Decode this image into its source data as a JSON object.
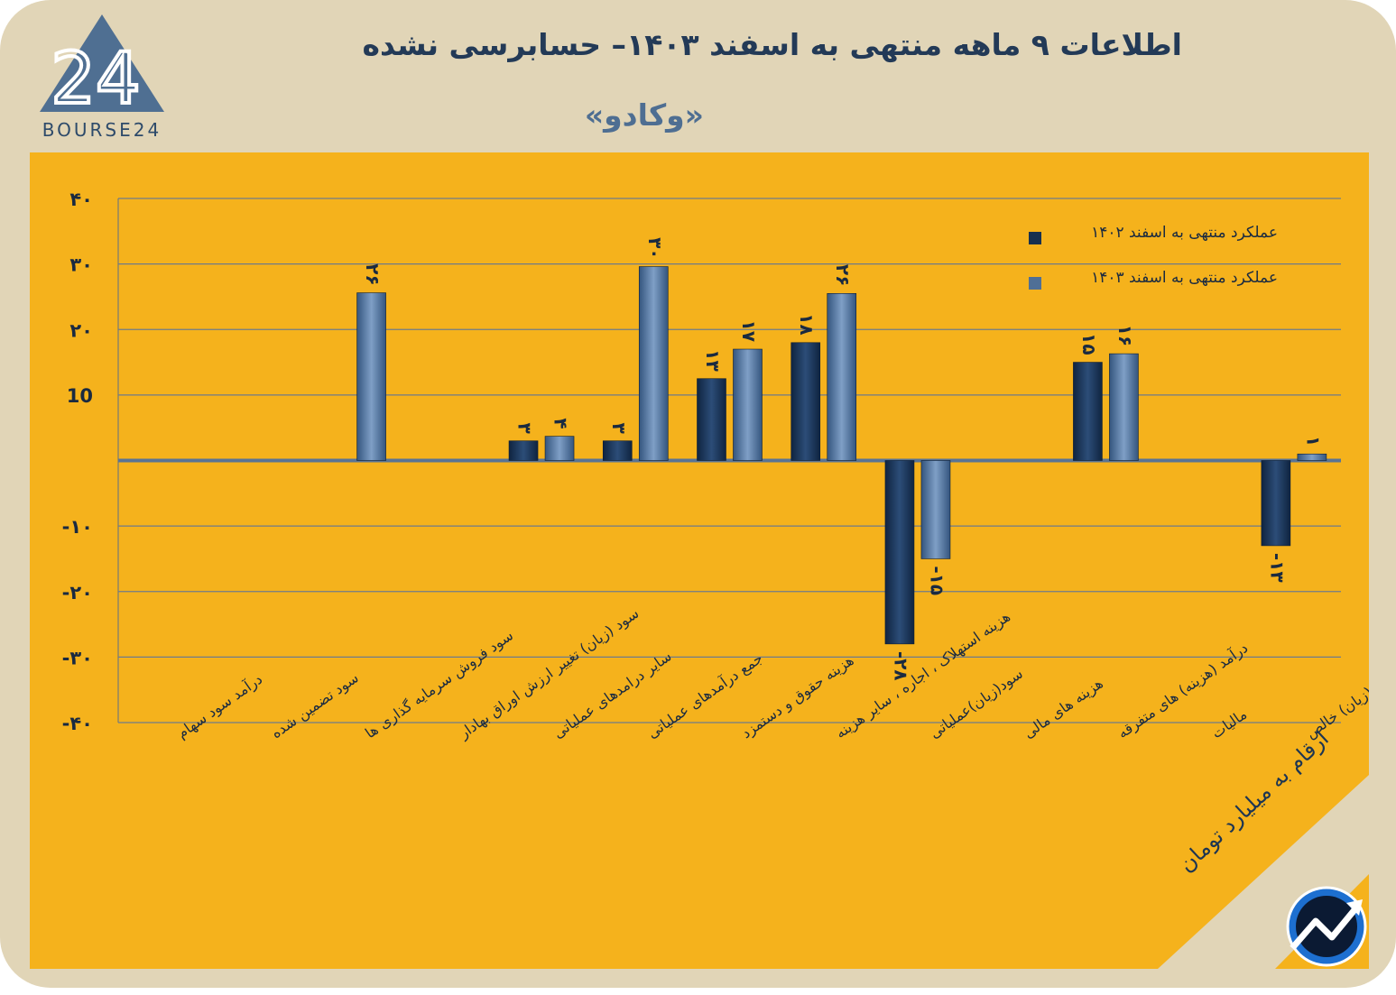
{
  "header": {
    "title": "اطلاعات ۹ ماهه منتهی به اسفند  ۱۴۰۳– حسابرسی نشده",
    "company": "«وکادو»"
  },
  "logo": {
    "text": "BOURSE24",
    "mark": "24"
  },
  "unit_label": "ارقام به میلیارد تومان",
  "colors": {
    "panel": "#f5b21c",
    "card": "#e1d5b7",
    "series_1402": "#17304f",
    "series_1403": "#4f6f96"
  },
  "icons": {
    "logo": "bourse24-triangle-logo",
    "brand": "trend-arrow-icon"
  },
  "chart_data": {
    "type": "bar",
    "categories": [
      "درآمد سود سهام",
      "سود تضمین شده",
      "سود فروش سرمایه گذاری ها",
      "سود (زیان) تغییر ارزش اوراق بهادار",
      "سایر درامدهای عملیاتی",
      "جمع درآمدهای عملیاتی",
      "هزینه حقوق و دستمزد",
      "هزینه استهلاک ، اجاره ، سایر هزینه",
      "سود(زیان)عملیاتی",
      "هزینه های مالی",
      "درآمد (هزینه) های متفرقه",
      "مالیات",
      "سود(زیان) خالص"
    ],
    "series": [
      {
        "name": "عملکرد منتهی به اسفند ۱۴۰۲",
        "values": [
          0,
          0,
          0,
          0,
          3,
          3,
          12.5,
          18,
          -28,
          0,
          15,
          0,
          -13
        ],
        "labels": [
          "",
          "",
          "",
          "",
          "۳",
          "۳",
          "۱۳",
          "۱۸",
          "-۲۸",
          "",
          "۱۵",
          "",
          "-۱۳"
        ]
      },
      {
        "name": "عملکرد منتهی به اسفند ۱۴۰۳",
        "values": [
          0,
          0,
          25.6,
          0,
          3.7,
          29.6,
          17,
          25.5,
          -15,
          0,
          16.3,
          0,
          1
        ],
        "labels": [
          "",
          "",
          "۲۶",
          "",
          "۴",
          "۳۰",
          "۱۷",
          "۲۶",
          "-۱۵",
          "",
          "۱۶",
          "",
          "۱"
        ]
      }
    ],
    "yticks": [
      40,
      30,
      20,
      10,
      0,
      -10,
      -20,
      -30,
      -40
    ],
    "ytick_labels": [
      "۴۰",
      "۳۰",
      "۲۰",
      "10",
      "",
      "-۱۰",
      "-۲۰",
      "-۳۰",
      "-۴۰"
    ],
    "ylim": [
      -40,
      40
    ],
    "grid": true,
    "legend_position": "top-right",
    "title": "",
    "xlabel": "",
    "ylabel": ""
  }
}
